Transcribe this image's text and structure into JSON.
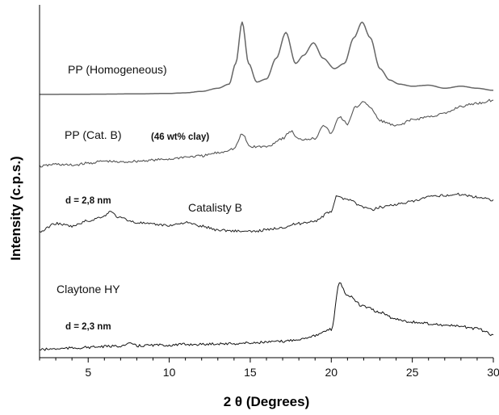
{
  "chart_data": {
    "type": "line",
    "title": "",
    "xlabel": "2 θ (Degrees)",
    "ylabel": "Intensity (c.p.s.)",
    "xlim": [
      2,
      30
    ],
    "x_ticks": [
      5,
      10,
      15,
      20,
      25,
      30
    ],
    "y_ticks_visible": false,
    "grid": false,
    "legend": "none",
    "series": [
      {
        "label": "PP (Homogeneous)",
        "points": [
          [
            2,
            0.05
          ],
          [
            4,
            0.15
          ],
          [
            6,
            0.35
          ],
          [
            8,
            0.6
          ],
          [
            10,
            1.0
          ],
          [
            11,
            1.6
          ],
          [
            12,
            3
          ],
          [
            13,
            6
          ],
          [
            13.7,
            10
          ],
          [
            14.1,
            30
          ],
          [
            14.5,
            70
          ],
          [
            14.9,
            30
          ],
          [
            15.4,
            12
          ],
          [
            16,
            15
          ],
          [
            16.6,
            35
          ],
          [
            17.2,
            60
          ],
          [
            17.8,
            30
          ],
          [
            18.3,
            38
          ],
          [
            18.9,
            50
          ],
          [
            19.5,
            35
          ],
          [
            20.2,
            25
          ],
          [
            20.8,
            30
          ],
          [
            21.4,
            55
          ],
          [
            21.9,
            70
          ],
          [
            22.4,
            55
          ],
          [
            23,
            25
          ],
          [
            23.6,
            14
          ],
          [
            24.2,
            10
          ],
          [
            25,
            8
          ],
          [
            26,
            9
          ],
          [
            27,
            6
          ],
          [
            28,
            8
          ],
          [
            29,
            6
          ],
          [
            30,
            4
          ]
        ]
      },
      {
        "label": "PP (Cat. B)",
        "points": [
          [
            2,
            0
          ],
          [
            3,
            2
          ],
          [
            4,
            1
          ],
          [
            5,
            3
          ],
          [
            6,
            5
          ],
          [
            7,
            4
          ],
          [
            8,
            5
          ],
          [
            9,
            6
          ],
          [
            10,
            7
          ],
          [
            11,
            9
          ],
          [
            12,
            10
          ],
          [
            13,
            13
          ],
          [
            14,
            17
          ],
          [
            14.5,
            31
          ],
          [
            15,
            19
          ],
          [
            16,
            19
          ],
          [
            17,
            27
          ],
          [
            17.5,
            34
          ],
          [
            18,
            26
          ],
          [
            19,
            27
          ],
          [
            19.5,
            40
          ],
          [
            20,
            32
          ],
          [
            20.5,
            48
          ],
          [
            21,
            41
          ],
          [
            21.5,
            57
          ],
          [
            22,
            63
          ],
          [
            22.5,
            55
          ],
          [
            23,
            44
          ],
          [
            24,
            39
          ],
          [
            25,
            45
          ],
          [
            26,
            48
          ],
          [
            27,
            51
          ],
          [
            28,
            58
          ],
          [
            29,
            61
          ],
          [
            30,
            64
          ]
        ]
      },
      {
        "label": "Catalisty B",
        "points": [
          [
            2,
            0
          ],
          [
            3,
            9
          ],
          [
            4,
            6
          ],
          [
            5,
            12
          ],
          [
            6,
            17
          ],
          [
            6.3,
            22
          ],
          [
            7,
            15
          ],
          [
            8,
            10
          ],
          [
            9,
            8
          ],
          [
            10,
            7
          ],
          [
            11,
            10
          ],
          [
            12,
            6
          ],
          [
            13,
            2
          ],
          [
            14,
            1
          ],
          [
            15,
            0
          ],
          [
            16,
            2
          ],
          [
            17,
            5
          ],
          [
            18,
            9
          ],
          [
            19,
            12
          ],
          [
            20,
            22
          ],
          [
            20.3,
            38
          ],
          [
            21,
            36
          ],
          [
            22,
            27
          ],
          [
            22.5,
            24
          ],
          [
            23,
            27
          ],
          [
            24,
            30
          ],
          [
            25,
            33
          ],
          [
            26,
            38
          ],
          [
            27,
            40
          ],
          [
            28,
            41
          ],
          [
            29,
            38
          ],
          [
            30,
            35
          ]
        ]
      },
      {
        "label": "Claytone HY",
        "points": [
          [
            2,
            0
          ],
          [
            3,
            1
          ],
          [
            4,
            2
          ],
          [
            5,
            3
          ],
          [
            6,
            4
          ],
          [
            7,
            5
          ],
          [
            7.7,
            8
          ],
          [
            8,
            5
          ],
          [
            9,
            6
          ],
          [
            10,
            6
          ],
          [
            11,
            7
          ],
          [
            12,
            7
          ],
          [
            13,
            8
          ],
          [
            14,
            8
          ],
          [
            15,
            9
          ],
          [
            16,
            10
          ],
          [
            17,
            11
          ],
          [
            18,
            14
          ],
          [
            19,
            19
          ],
          [
            20,
            27
          ],
          [
            20.5,
            90
          ],
          [
            21,
            73
          ],
          [
            22,
            58
          ],
          [
            23,
            50
          ],
          [
            24,
            41
          ],
          [
            25,
            37
          ],
          [
            26,
            35
          ],
          [
            27,
            33
          ],
          [
            28,
            31
          ],
          [
            29,
            28
          ],
          [
            30,
            20
          ]
        ]
      }
    ],
    "annotations": [
      {
        "text": "PP (Homogeneous)",
        "style": "normal"
      },
      {
        "text": "PP (Cat. B)",
        "style": "normal"
      },
      {
        "text": "(46 wt% clay)",
        "style": "bold"
      },
      {
        "text": "d = 2,8 nm",
        "style": "bold"
      },
      {
        "text": "Catalisty B",
        "style": "normal"
      },
      {
        "text": "Claytone HY",
        "style": "normal"
      },
      {
        "text": "d = 2,3 nm",
        "style": "bold"
      }
    ]
  }
}
